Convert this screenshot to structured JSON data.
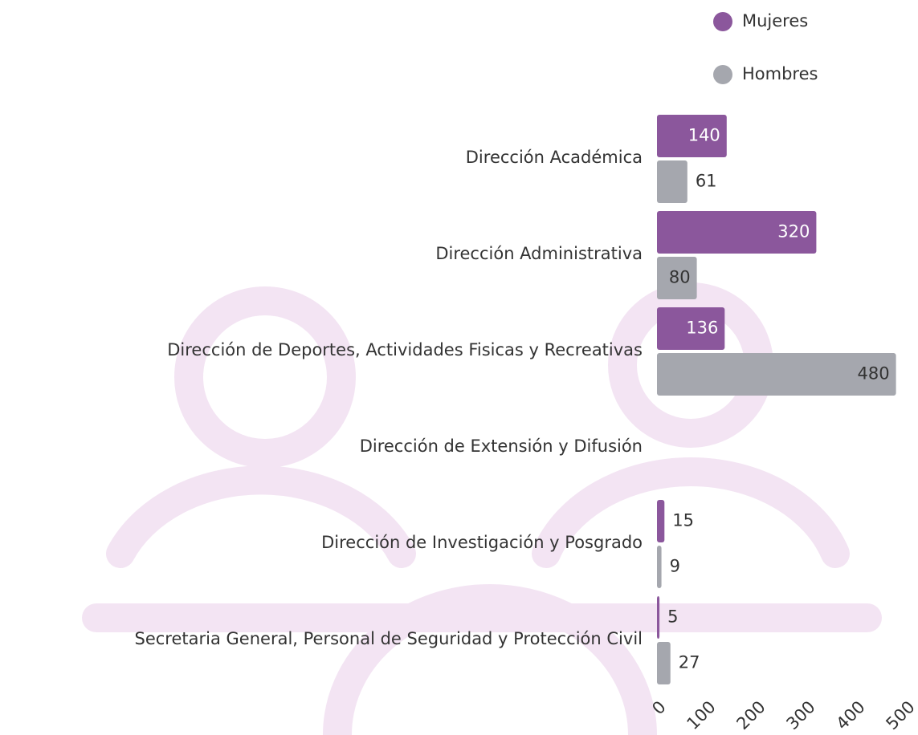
{
  "chart_data": {
    "type": "bar",
    "orientation": "horizontal",
    "categories": [
      "Dirección Académica",
      "Dirección Administrativa",
      "Dirección de Deportes, Actividades Fisicas y Recreativas",
      "Dirección de Extensión y Difusión",
      "Dirección de Investigación y Posgrado",
      "Secretaria General, Personal de Seguridad y Protección Civil"
    ],
    "series": [
      {
        "name": "Mujeres",
        "color": "#8b579c",
        "values": [
          140,
          320,
          136,
          null,
          15,
          5
        ]
      },
      {
        "name": "Hombres",
        "color": "#a5a7ae",
        "values": [
          61,
          80,
          480,
          null,
          9,
          27
        ]
      }
    ],
    "xlim": [
      0,
      500
    ],
    "xticks": [
      0,
      100,
      200,
      300,
      400,
      500
    ],
    "grid": false,
    "legend": "top-right"
  }
}
